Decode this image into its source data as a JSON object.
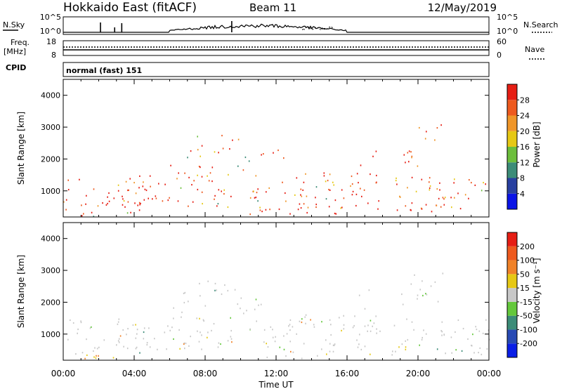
{
  "header": {
    "title": "Hokkaido East (fitACF)",
    "beam": "Beam 11",
    "date": "12/May/2019"
  },
  "nsky_panel": {
    "left_label": "N.Sky",
    "right_label": "N.Search",
    "left_ticks": [
      "10^5",
      "10^0"
    ],
    "right_ticks": [
      "10^5",
      "10^0"
    ]
  },
  "freq_panel": {
    "left_label_line1": "Freq.",
    "left_label_line2": "[MHz]",
    "right_label": "Nave",
    "left_ticks": [
      "18",
      "8"
    ],
    "right_ticks": [
      "60",
      "0"
    ]
  },
  "cpid_panel": {
    "label": "CPID",
    "text": "normal (fast) 151"
  },
  "x_axis": {
    "label": "Time UT",
    "ticks": [
      "00:00",
      "04:00",
      "08:00",
      "12:00",
      "16:00",
      "20:00",
      "00:00"
    ]
  },
  "chart_data": [
    {
      "type": "heatmap",
      "title": "",
      "ylabel": "Slant Range [km]",
      "xlabel": "Time UT",
      "ylim": [
        180,
        4500
      ],
      "yticks": [
        1000,
        2000,
        3000,
        4000
      ],
      "xticks": [
        "00:00",
        "04:00",
        "08:00",
        "12:00",
        "16:00",
        "20:00",
        "00:00"
      ],
      "colorbar": {
        "label": "Power [dB]",
        "levels": [
          4,
          8,
          12,
          16,
          20,
          24,
          28
        ],
        "colors": [
          "#0a14e6",
          "#2840a0",
          "#3c8c78",
          "#6cbe3c",
          "#e6c814",
          "#f09628",
          "#ee5a1e",
          "#e61e14"
        ]
      }
    },
    {
      "type": "heatmap",
      "title": "",
      "ylabel": "Slant Range [km]",
      "xlabel": "Time UT",
      "ylim": [
        180,
        4500
      ],
      "yticks": [
        1000,
        2000,
        3000,
        4000
      ],
      "xticks": [
        "00:00",
        "04:00",
        "08:00",
        "12:00",
        "16:00",
        "20:00",
        "00:00"
      ],
      "colorbar": {
        "label": "Velocity [m s⁻¹]",
        "levels": [
          "200",
          "100",
          "50",
          "15",
          "-15",
          "-50",
          "-100",
          "-200"
        ],
        "colors": [
          "#0a1ee6",
          "#284ab4",
          "#3c8c78",
          "#64c83c",
          "#c8c8c8",
          "#e6c814",
          "#f08228",
          "#ee5a1e",
          "#e61e14"
        ]
      }
    }
  ]
}
